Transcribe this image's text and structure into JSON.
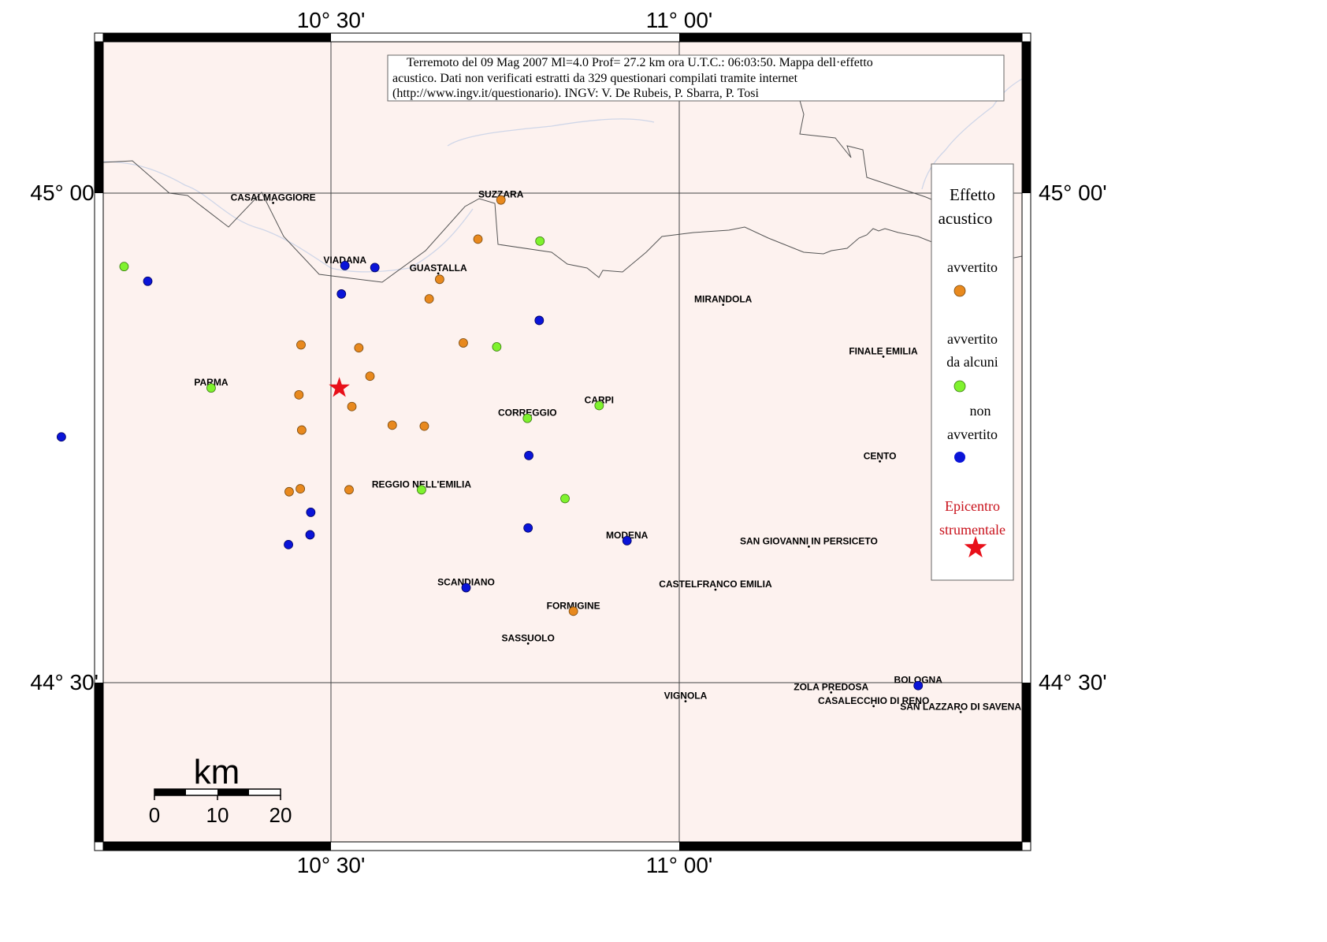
{
  "map": {
    "title_lines": [
      "Terremoto del 09 Mag 2007 Ml=4.0 Prof= 27.2 km ora U.T.C.: 06:03:50.  Mappa dell·effetto",
      "acustico.    Dati non verificati estratti da 329 questionari compilati tramite internet",
      "(http://www.ingv.it/questionario).    INGV: V.  De Rubeis, P.  Sbarra, P.  Tosi"
    ],
    "lon_labels": [
      "10° 30'",
      "11° 00'"
    ],
    "lat_labels": [
      "45° 00'",
      "44° 30'"
    ],
    "scale": {
      "unit": "km",
      "ticks": [
        "0",
        "10",
        "20"
      ]
    },
    "colors": {
      "land": "#fdf2ef",
      "avvertito": "#e8891e",
      "avvertito_da_alcuni": "#7ff22e",
      "non_avvertito": "#0a14d8",
      "epicentro": "#e8101a",
      "epicentro_text": "#c8101a"
    },
    "legend": {
      "title_line1": "Effetto",
      "title_line2": "acustico",
      "avvertito": "avvertito",
      "avvertito_da_alcuni_line1": "avvertito",
      "avvertito_da_alcuni_line2": "da alcuni",
      "non_avvertito_line1": "non",
      "non_avvertito_line2": "avvertito",
      "epicentro_line1": "Epicentro",
      "epicentro_line2": "strumentale"
    },
    "towns": [
      {
        "name": "CASALMAGGIORE",
        "lon": 10.417,
        "lat": 44.99
      },
      {
        "name": "SUZZARA",
        "lon": 10.744,
        "lat": 44.993
      },
      {
        "name": "VIADANA",
        "lon": 10.52,
        "lat": 44.926
      },
      {
        "name": "GUASTALLA",
        "lon": 10.654,
        "lat": 44.918
      },
      {
        "name": "MIRANDOLA",
        "lon": 11.063,
        "lat": 44.886
      },
      {
        "name": "FINALE EMILIA",
        "lon": 11.293,
        "lat": 44.833
      },
      {
        "name": "PARMA",
        "lon": 10.328,
        "lat": 44.801
      },
      {
        "name": "CARPI",
        "lon": 10.885,
        "lat": 44.783
      },
      {
        "name": "CORREGGIO",
        "lon": 10.782,
        "lat": 44.77
      },
      {
        "name": "CENTO",
        "lon": 11.288,
        "lat": 44.726
      },
      {
        "name": "REGGIO NELL'EMILIA",
        "lon": 10.63,
        "lat": 44.697
      },
      {
        "name": "MODENA",
        "lon": 10.925,
        "lat": 44.645
      },
      {
        "name": "SAN GIOVANNI IN PERSICETO",
        "lon": 11.186,
        "lat": 44.639
      },
      {
        "name": "SCANDIANO",
        "lon": 10.694,
        "lat": 44.597
      },
      {
        "name": "CASTELFRANCO EMILIA",
        "lon": 11.052,
        "lat": 44.595
      },
      {
        "name": "FORMIGINE",
        "lon": 10.848,
        "lat": 44.573
      },
      {
        "name": "SASSUOLO",
        "lon": 10.783,
        "lat": 44.54
      },
      {
        "name": "BOLOGNA",
        "lon": 11.343,
        "lat": 44.497
      },
      {
        "name": "ZOLA PREDOSA",
        "lon": 11.218,
        "lat": 44.49
      },
      {
        "name": "VIGNOLA",
        "lon": 11.009,
        "lat": 44.481
      },
      {
        "name": "CASALECCHIO DI RENO",
        "lon": 11.279,
        "lat": 44.476
      },
      {
        "name": "SAN LAZZARO DI SAVENA",
        "lon": 11.404,
        "lat": 44.47
      }
    ],
    "observations": {
      "avvertito": [
        [
          10.744,
          44.993
        ],
        [
          10.711,
          44.953
        ],
        [
          10.656,
          44.912
        ],
        [
          10.641,
          44.892
        ],
        [
          10.457,
          44.845
        ],
        [
          10.54,
          44.842
        ],
        [
          10.69,
          44.847
        ],
        [
          10.556,
          44.813
        ],
        [
          10.454,
          44.794
        ],
        [
          10.53,
          44.782
        ],
        [
          10.588,
          44.763
        ],
        [
          10.458,
          44.758
        ],
        [
          10.634,
          44.762
        ],
        [
          10.44,
          44.695
        ],
        [
          10.456,
          44.698
        ],
        [
          10.526,
          44.697
        ],
        [
          10.848,
          44.573
        ]
      ],
      "avvertito_da_alcuni": [
        [
          10.8,
          44.951
        ],
        [
          10.203,
          44.925
        ],
        [
          10.738,
          44.843
        ],
        [
          10.328,
          44.801
        ],
        [
          10.885,
          44.783
        ],
        [
          10.782,
          44.77
        ],
        [
          10.63,
          44.697
        ],
        [
          10.836,
          44.688
        ]
      ],
      "non_avvertito": [
        [
          10.237,
          44.91
        ],
        [
          10.52,
          44.926
        ],
        [
          10.563,
          44.924
        ],
        [
          10.515,
          44.897
        ],
        [
          10.799,
          44.87
        ],
        [
          10.113,
          44.751
        ],
        [
          10.784,
          44.732
        ],
        [
          10.471,
          44.674
        ],
        [
          10.47,
          44.651
        ],
        [
          10.783,
          44.658
        ],
        [
          10.439,
          44.641
        ],
        [
          10.925,
          44.645
        ],
        [
          10.694,
          44.597
        ],
        [
          11.343,
          44.497
        ]
      ],
      "epicentro": [
        10.512,
        44.801
      ]
    }
  }
}
